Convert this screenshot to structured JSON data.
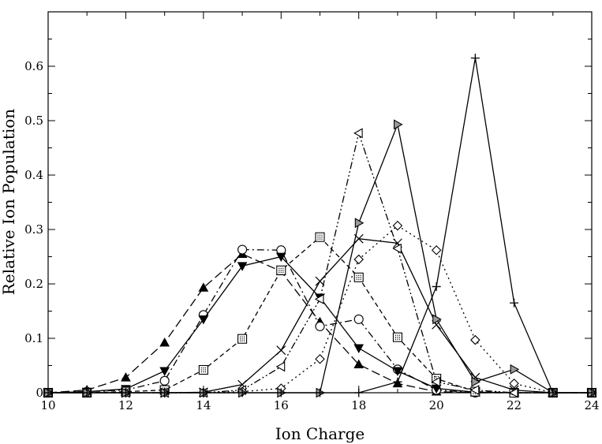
{
  "chart_data": {
    "type": "line",
    "title": "",
    "xlabel": "Ion Charge",
    "ylabel": "Relative Ion Population",
    "xlim": [
      10,
      24
    ],
    "ylim": [
      0,
      0.7
    ],
    "x_ticks": [
      10,
      12,
      14,
      16,
      18,
      20,
      22,
      24
    ],
    "y_ticks": [
      0,
      0.1,
      0.2,
      0.3,
      0.4,
      0.5,
      0.6
    ],
    "y_tick_labels": [
      "0",
      "0.1",
      "0.2",
      "0.3",
      "0.4",
      "0.5",
      "0.6"
    ],
    "grid": false,
    "legend": "none",
    "x": [
      10,
      11,
      12,
      13,
      14,
      15,
      16,
      17,
      18,
      19,
      20,
      21,
      22,
      23,
      24
    ],
    "series": [
      {
        "marker": "filled-triangle-up",
        "dash": "long-dash",
        "values": [
          0,
          0.005,
          0.028,
          0.092,
          0.193,
          0.255,
          0.223,
          0.13,
          0.052,
          0.017,
          0.002,
          0,
          0,
          0,
          0
        ]
      },
      {
        "marker": "open-circle",
        "dash": "dash-dot",
        "values": [
          0,
          0.002,
          0.005,
          0.022,
          0.143,
          0.263,
          0.262,
          0.122,
          0.135,
          0.043,
          0.005,
          0,
          0,
          0,
          0
        ]
      },
      {
        "marker": "filled-triangle-down",
        "dash": "solid",
        "values": [
          0,
          0.002,
          0.007,
          0.04,
          0.135,
          0.233,
          0.25,
          0.175,
          0.082,
          0.04,
          0.008,
          0.001,
          0,
          0,
          0
        ]
      },
      {
        "marker": "dotted-square",
        "dash": "short-dash",
        "values": [
          0,
          0,
          0.002,
          0.005,
          0.042,
          0.099,
          0.225,
          0.286,
          0.212,
          0.102,
          0.026,
          0.002,
          0,
          0,
          0
        ]
      },
      {
        "marker": "x-cross",
        "dash": "solid",
        "values": [
          0,
          0,
          0,
          0,
          0.001,
          0.015,
          0.078,
          0.205,
          0.283,
          0.275,
          0.125,
          0.028,
          0.005,
          0,
          0
        ]
      },
      {
        "marker": "open-triangle-left",
        "dash": "dash-dot-dot",
        "values": [
          0,
          0,
          0,
          0,
          0,
          0.005,
          0.048,
          0.172,
          0.477,
          0.265,
          0.02,
          0.005,
          0,
          0,
          0
        ]
      },
      {
        "marker": "open-diamond",
        "dash": "dotted",
        "values": [
          0,
          0,
          0,
          0,
          0,
          0.002,
          0.008,
          0.062,
          0.245,
          0.307,
          0.262,
          0.097,
          0.017,
          0,
          0
        ]
      },
      {
        "marker": "gray-triangle-right",
        "dash": "solid",
        "values": [
          0,
          0,
          0,
          0,
          0,
          0,
          0,
          0,
          0.312,
          0.493,
          0.135,
          0.02,
          0.043,
          0,
          0
        ]
      },
      {
        "marker": "plus",
        "dash": "solid",
        "values": [
          0,
          0,
          0,
          0,
          0,
          0,
          0,
          0,
          0,
          0.02,
          0.195,
          0.615,
          0.165,
          0,
          0
        ]
      }
    ]
  }
}
